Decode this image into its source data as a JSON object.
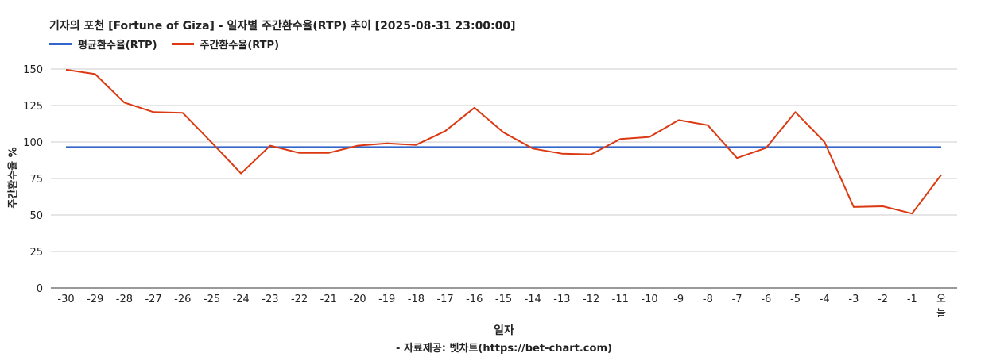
{
  "chart_data": {
    "type": "line",
    "title": "기자의 포천 [Fortune of Giza] - 일자별 주간환수율(RTP) 추이 [2025-08-31 23:00:00]",
    "xlabel": "일자",
    "ylabel": "주간환수율 %",
    "footer": "- 자료제공: 벳차트(https://bet-chart.com)",
    "ylim": [
      0,
      150
    ],
    "yticks": [
      "0",
      "25",
      "50",
      "75",
      "100",
      "125",
      "150"
    ],
    "grid": true,
    "legend_position": "top-left",
    "categories": [
      "-30",
      "-29",
      "-28",
      "-27",
      "-26",
      "-25",
      "-24",
      "-23",
      "-22",
      "-21",
      "-20",
      "-19",
      "-18",
      "-17",
      "-16",
      "-15",
      "-14",
      "-13",
      "-12",
      "-11",
      "-10",
      "-9",
      "-8",
      "-7",
      "-6",
      "-5",
      "-4",
      "-3",
      "-2",
      "-1",
      "오늘"
    ],
    "series": [
      {
        "name": "평균환수율(RTP)",
        "color": "#3366cc",
        "values": [
          96.5,
          96.5,
          96.5,
          96.5,
          96.5,
          96.5,
          96.5,
          96.5,
          96.5,
          96.5,
          96.5,
          96.5,
          96.5,
          96.5,
          96.5,
          96.5,
          96.5,
          96.5,
          96.5,
          96.5,
          96.5,
          96.5,
          96.5,
          96.5,
          96.5,
          96.5,
          96.5,
          96.5,
          96.5,
          96.5,
          96.5
        ]
      },
      {
        "name": "주간환수율(RTP)",
        "color": "#dc3912",
        "values": [
          149.5,
          146.5,
          127,
          120.5,
          120,
          99.5,
          78.5,
          97.5,
          92.5,
          92.5,
          97.5,
          99,
          98,
          107.5,
          123.5,
          106.5,
          95.5,
          92,
          91.5,
          102,
          103.5,
          115,
          111.5,
          89,
          96,
          120.5,
          100,
          55.5,
          56,
          51,
          77.5
        ]
      }
    ]
  }
}
